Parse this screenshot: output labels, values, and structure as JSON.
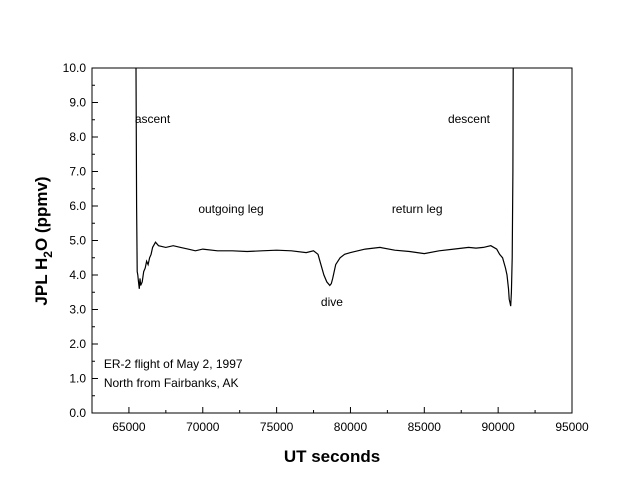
{
  "chart_data": {
    "type": "line",
    "title": "",
    "xlabel": "UT seconds",
    "ylabel_parts": {
      "before": "JPL H",
      "sub": "2",
      "after": "O (ppmv)"
    },
    "xlim": [
      62500,
      95000
    ],
    "ylim": [
      0,
      10
    ],
    "x_ticks": [
      65000,
      70000,
      75000,
      80000,
      85000,
      90000,
      95000
    ],
    "x_tick_labels": [
      "65000",
      "70000",
      "75000",
      "80000",
      "85000",
      "90000",
      "95000"
    ],
    "y_ticks": [
      0,
      1,
      2,
      3,
      4,
      5,
      6,
      7,
      8,
      9,
      10
    ],
    "y_tick_labels": [
      "0.0",
      "1.0",
      "2.0",
      "3.0",
      "4.0",
      "5.0",
      "6.0",
      "7.0",
      "8.0",
      "9.0",
      "10.0"
    ],
    "grid": false,
    "line_color": "#000000",
    "series": [
      {
        "x": [
          65480,
          65520,
          65560,
          65600,
          65650,
          65700,
          65750,
          65800,
          65900,
          66000,
          66100,
          66200,
          66300,
          66400,
          66500,
          66600,
          66800,
          67000,
          67500,
          68000,
          68500,
          69000,
          69500,
          70000,
          71000,
          72000,
          73000,
          74000,
          75000,
          76000,
          77000,
          77500,
          77800,
          78000,
          78200,
          78400,
          78600,
          78700,
          78800,
          79000,
          79300,
          79600,
          80000,
          80500,
          81000,
          82000,
          83000,
          84000,
          85000,
          86000,
          87000,
          88000,
          88500,
          89000,
          89500,
          89900,
          90100,
          90300,
          90500,
          90600,
          90700,
          90750,
          90800,
          90850,
          90900,
          90950,
          91000,
          91020
        ],
        "y": [
          10.0,
          6.0,
          4.1,
          4.0,
          3.8,
          3.6,
          3.9,
          3.7,
          3.8,
          4.1,
          4.2,
          4.4,
          4.3,
          4.5,
          4.6,
          4.8,
          4.95,
          4.85,
          4.8,
          4.85,
          4.8,
          4.75,
          4.7,
          4.75,
          4.7,
          4.7,
          4.68,
          4.7,
          4.72,
          4.7,
          4.65,
          4.7,
          4.6,
          4.3,
          4.0,
          3.8,
          3.7,
          3.75,
          3.9,
          4.3,
          4.5,
          4.6,
          4.65,
          4.7,
          4.75,
          4.8,
          4.72,
          4.68,
          4.62,
          4.7,
          4.75,
          4.8,
          4.78,
          4.8,
          4.85,
          4.75,
          4.6,
          4.5,
          4.2,
          4.0,
          3.6,
          3.3,
          3.2,
          3.1,
          3.5,
          4.5,
          7.0,
          10.0
        ]
      }
    ],
    "annotations": [
      {
        "text": "ascent",
        "x": 65400,
        "y": 8.4
      },
      {
        "text": "descent",
        "x": 86600,
        "y": 8.4
      },
      {
        "text": "outgoing leg",
        "x": 69700,
        "y": 5.8
      },
      {
        "text": "return leg",
        "x": 82800,
        "y": 5.8
      },
      {
        "text": "dive",
        "x": 78000,
        "y": 3.1
      },
      {
        "text": "ER-2 flight of May 2, 1997",
        "x": 63300,
        "y": 1.3
      },
      {
        "text": "North from Fairbanks, AK",
        "x": 63300,
        "y": 0.75
      }
    ]
  }
}
